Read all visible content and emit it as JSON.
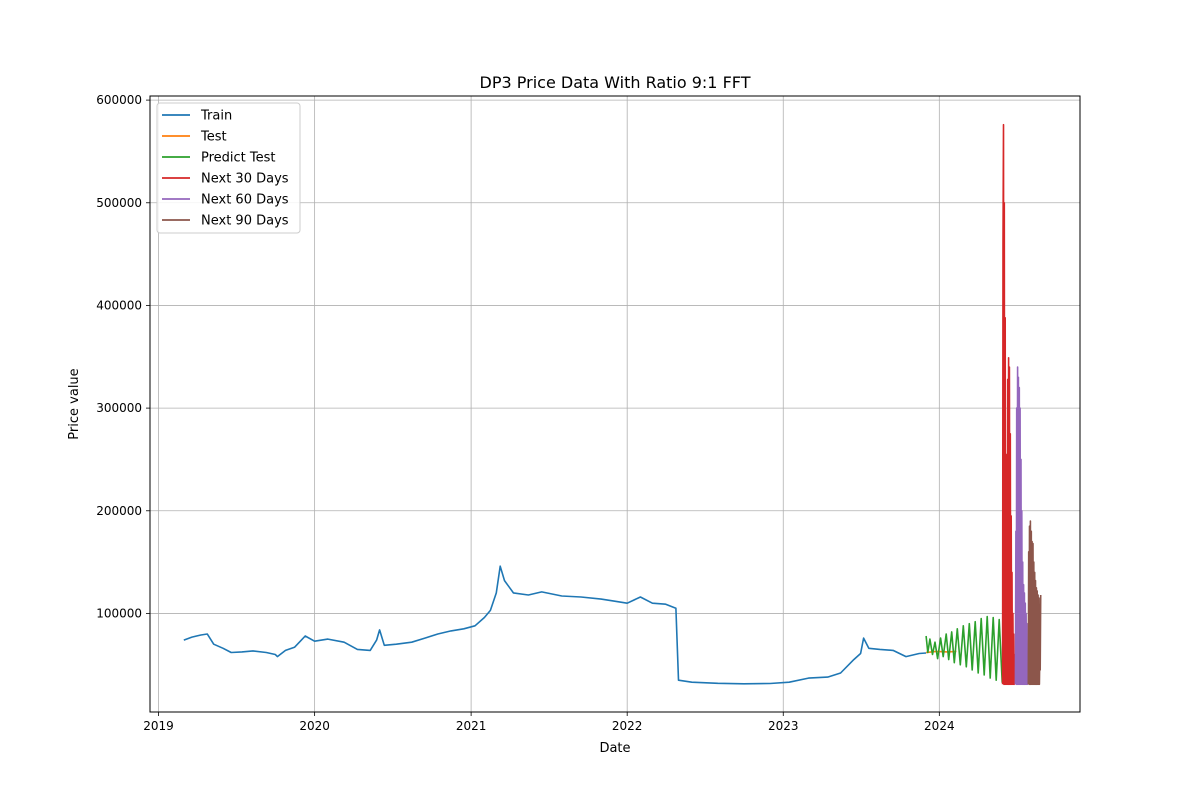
{
  "chart_data": {
    "type": "line",
    "title": "DP3 Price Data With Ratio 9:1  FFT",
    "xlabel": "Date",
    "ylabel": "Price value",
    "xlim": [
      "2018-12-12",
      "2024-11-25"
    ],
    "ylim": [
      4000,
      604000
    ],
    "x_ticks": [
      "2019",
      "2020",
      "2021",
      "2022",
      "2023",
      "2024"
    ],
    "y_ticks": [
      100000,
      200000,
      300000,
      400000,
      500000,
      600000
    ],
    "y_tick_labels": [
      "100000",
      "200000",
      "300000",
      "400000",
      "500000",
      "600000"
    ],
    "grid": true,
    "legend_position": "upper-left",
    "series": [
      {
        "name": "Train",
        "color": "#1f77b4",
        "points": [
          [
            "2019-03-01",
            74000
          ],
          [
            "2019-03-20",
            77000
          ],
          [
            "2019-04-10",
            79000
          ],
          [
            "2019-04-25",
            80000
          ],
          [
            "2019-05-10",
            70000
          ],
          [
            "2019-06-01",
            66000
          ],
          [
            "2019-06-20",
            62000
          ],
          [
            "2019-07-15",
            62500
          ],
          [
            "2019-08-10",
            63500
          ],
          [
            "2019-09-10",
            62000
          ],
          [
            "2019-10-01",
            60000
          ],
          [
            "2019-10-06",
            58000
          ],
          [
            "2019-10-25",
            64000
          ],
          [
            "2019-11-15",
            67000
          ],
          [
            "2019-12-01",
            74000
          ],
          [
            "2019-12-10",
            78000
          ],
          [
            "2020-01-01",
            73000
          ],
          [
            "2020-02-01",
            75000
          ],
          [
            "2020-03-10",
            72000
          ],
          [
            "2020-04-10",
            65000
          ],
          [
            "2020-05-10",
            64000
          ],
          [
            "2020-05-25",
            74000
          ],
          [
            "2020-06-01",
            84000
          ],
          [
            "2020-06-12",
            69000
          ],
          [
            "2020-07-10",
            70000
          ],
          [
            "2020-08-15",
            72000
          ],
          [
            "2020-09-15",
            76000
          ],
          [
            "2020-10-15",
            80000
          ],
          [
            "2020-11-15",
            83000
          ],
          [
            "2020-12-15",
            85000
          ],
          [
            "2021-01-10",
            88000
          ],
          [
            "2021-02-01",
            96000
          ],
          [
            "2021-02-15",
            103000
          ],
          [
            "2021-03-01",
            120000
          ],
          [
            "2021-03-10",
            146000
          ],
          [
            "2021-03-20",
            132000
          ],
          [
            "2021-04-10",
            120000
          ],
          [
            "2021-05-15",
            118000
          ],
          [
            "2021-06-15",
            121000
          ],
          [
            "2021-08-01",
            117000
          ],
          [
            "2021-09-15",
            116000
          ],
          [
            "2021-11-01",
            114000
          ],
          [
            "2021-12-01",
            112000
          ],
          [
            "2022-01-01",
            110000
          ],
          [
            "2022-02-01",
            116000
          ],
          [
            "2022-03-01",
            110000
          ],
          [
            "2022-04-01",
            109000
          ],
          [
            "2022-04-25",
            105000
          ],
          [
            "2022-05-01",
            35000
          ],
          [
            "2022-06-01",
            33000
          ],
          [
            "2022-08-01",
            32000
          ],
          [
            "2022-10-01",
            31500
          ],
          [
            "2022-12-01",
            31800
          ],
          [
            "2023-01-15",
            33000
          ],
          [
            "2023-03-01",
            37000
          ],
          [
            "2023-04-15",
            38000
          ],
          [
            "2023-05-15",
            42000
          ],
          [
            "2023-06-15",
            55000
          ],
          [
            "2023-07-01",
            61000
          ],
          [
            "2023-07-08",
            76000
          ],
          [
            "2023-07-20",
            66000
          ],
          [
            "2023-08-15",
            65000
          ],
          [
            "2023-09-15",
            64000
          ],
          [
            "2023-10-15",
            58000
          ],
          [
            "2023-11-15",
            61000
          ],
          [
            "2023-12-01",
            61500
          ]
        ]
      },
      {
        "name": "Test",
        "color": "#ff7f0e",
        "points": [
          [
            "2023-12-01",
            62000
          ],
          [
            "2023-12-25",
            63000
          ],
          [
            "2024-01-20",
            62500
          ],
          [
            "2024-02-10",
            63000
          ]
        ]
      },
      {
        "name": "Predict Test",
        "color": "#2ca02c",
        "points": [
          [
            "2023-12-01",
            78000
          ],
          [
            "2023-12-05",
            62000
          ],
          [
            "2023-12-10",
            75000
          ],
          [
            "2023-12-16",
            60000
          ],
          [
            "2023-12-22",
            72000
          ],
          [
            "2023-12-28",
            56000
          ],
          [
            "2024-01-04",
            76000
          ],
          [
            "2024-01-10",
            58000
          ],
          [
            "2024-01-17",
            80000
          ],
          [
            "2024-01-23",
            55000
          ],
          [
            "2024-01-30",
            82000
          ],
          [
            "2024-02-05",
            52000
          ],
          [
            "2024-02-12",
            85000
          ],
          [
            "2024-02-19",
            50000
          ],
          [
            "2024-02-26",
            88000
          ],
          [
            "2024-03-04",
            48000
          ],
          [
            "2024-03-11",
            90000
          ],
          [
            "2024-03-18",
            45000
          ],
          [
            "2024-03-25",
            92000
          ],
          [
            "2024-04-01",
            42000
          ],
          [
            "2024-04-08",
            95000
          ],
          [
            "2024-04-15",
            40000
          ],
          [
            "2024-04-22",
            97000
          ],
          [
            "2024-04-29",
            37000
          ],
          [
            "2024-05-06",
            96000
          ],
          [
            "2024-05-13",
            35000
          ],
          [
            "2024-05-20",
            94000
          ],
          [
            "2024-05-27",
            33000
          ],
          [
            "2024-06-03",
            95000
          ]
        ]
      },
      {
        "name": "Next 30 Days",
        "color": "#d62728",
        "points": [
          [
            "2024-05-28",
            31000
          ],
          [
            "2024-05-29",
            460000
          ],
          [
            "2024-05-30",
            576000
          ],
          [
            "2024-05-31",
            31000
          ],
          [
            "2024-06-01",
            500000
          ],
          [
            "2024-06-02",
            31000
          ],
          [
            "2024-06-03",
            388000
          ],
          [
            "2024-06-04",
            31000
          ],
          [
            "2024-06-05",
            255000
          ],
          [
            "2024-06-06",
            31000
          ],
          [
            "2024-06-07",
            182000
          ],
          [
            "2024-06-08",
            31000
          ],
          [
            "2024-06-09",
            328000
          ],
          [
            "2024-06-10",
            31000
          ],
          [
            "2024-06-11",
            349000
          ],
          [
            "2024-06-12",
            31000
          ],
          [
            "2024-06-13",
            340000
          ],
          [
            "2024-06-14",
            31000
          ],
          [
            "2024-06-15",
            275000
          ],
          [
            "2024-06-16",
            31000
          ],
          [
            "2024-06-17",
            195000
          ],
          [
            "2024-06-18",
            31000
          ],
          [
            "2024-06-19",
            140000
          ],
          [
            "2024-06-20",
            31000
          ],
          [
            "2024-06-21",
            100000
          ],
          [
            "2024-06-22",
            31000
          ],
          [
            "2024-06-23",
            80000
          ],
          [
            "2024-06-24",
            31000
          ],
          [
            "2024-06-25",
            60000
          ],
          [
            "2024-06-26",
            31000
          ]
        ]
      },
      {
        "name": "Next 60 Days",
        "color": "#9467bd",
        "points": [
          [
            "2024-06-27",
            31000
          ],
          [
            "2024-06-28",
            180000
          ],
          [
            "2024-06-29",
            31000
          ],
          [
            "2024-06-30",
            300000
          ],
          [
            "2024-07-01",
            31000
          ],
          [
            "2024-07-02",
            340000
          ],
          [
            "2024-07-03",
            31000
          ],
          [
            "2024-07-04",
            330000
          ],
          [
            "2024-07-05",
            31000
          ],
          [
            "2024-07-06",
            320000
          ],
          [
            "2024-07-07",
            31000
          ],
          [
            "2024-07-08",
            300000
          ],
          [
            "2024-07-09",
            31000
          ],
          [
            "2024-07-10",
            250000
          ],
          [
            "2024-07-11",
            31000
          ],
          [
            "2024-07-12",
            200000
          ],
          [
            "2024-07-13",
            31000
          ],
          [
            "2024-07-14",
            150000
          ],
          [
            "2024-07-15",
            31000
          ],
          [
            "2024-07-16",
            128000
          ],
          [
            "2024-07-17",
            31000
          ],
          [
            "2024-07-18",
            120000
          ],
          [
            "2024-07-19",
            31000
          ],
          [
            "2024-07-20",
            110000
          ],
          [
            "2024-07-21",
            31000
          ],
          [
            "2024-07-22",
            100000
          ],
          [
            "2024-07-23",
            31000
          ],
          [
            "2024-07-24",
            90000
          ],
          [
            "2024-07-25",
            31000
          ],
          [
            "2024-07-26",
            60000
          ]
        ]
      },
      {
        "name": "Next 90 Days",
        "color": "#8c564b",
        "points": [
          [
            "2024-07-27",
            31000
          ],
          [
            "2024-07-28",
            160000
          ],
          [
            "2024-07-29",
            31000
          ],
          [
            "2024-07-30",
            185000
          ],
          [
            "2024-07-31",
            31000
          ],
          [
            "2024-08-01",
            190000
          ],
          [
            "2024-08-02",
            31000
          ],
          [
            "2024-08-03",
            180000
          ],
          [
            "2024-08-04",
            31000
          ],
          [
            "2024-08-05",
            170000
          ],
          [
            "2024-08-06",
            31000
          ],
          [
            "2024-08-07",
            168000
          ],
          [
            "2024-08-08",
            31000
          ],
          [
            "2024-08-09",
            150000
          ],
          [
            "2024-08-10",
            31000
          ],
          [
            "2024-08-11",
            140000
          ],
          [
            "2024-08-12",
            31000
          ],
          [
            "2024-08-13",
            132000
          ],
          [
            "2024-08-14",
            31000
          ],
          [
            "2024-08-15",
            125000
          ],
          [
            "2024-08-16",
            31000
          ],
          [
            "2024-08-17",
            122000
          ],
          [
            "2024-08-18",
            31000
          ],
          [
            "2024-08-19",
            118000
          ],
          [
            "2024-08-20",
            31000
          ],
          [
            "2024-08-21",
            115000
          ],
          [
            "2024-08-22",
            31000
          ],
          [
            "2024-08-23",
            60000
          ],
          [
            "2024-08-24",
            45000
          ],
          [
            "2024-08-25",
            118000
          ]
        ]
      }
    ]
  }
}
